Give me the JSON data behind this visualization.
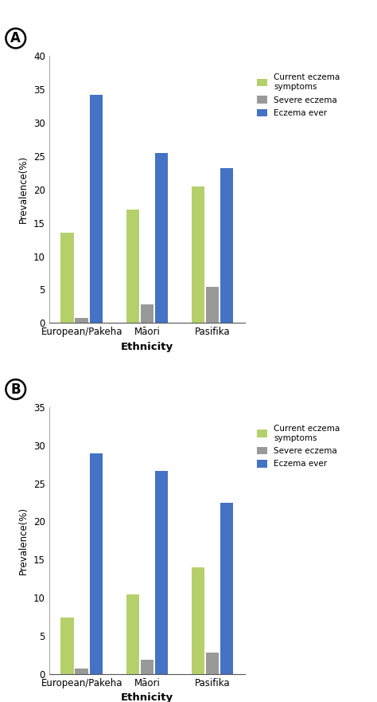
{
  "panel_A": {
    "label": "A",
    "categories": [
      "European/Pakeha",
      "Māori",
      "Pasifika"
    ],
    "current_eczema": [
      13.5,
      17.0,
      20.5
    ],
    "severe_eczema": [
      0.7,
      2.8,
      5.4
    ],
    "eczema_ever": [
      34.2,
      25.5,
      23.2
    ],
    "ylim": [
      0,
      40
    ],
    "yticks": [
      0,
      5,
      10,
      15,
      20,
      25,
      30,
      35,
      40
    ]
  },
  "panel_B": {
    "label": "B",
    "categories": [
      "European/Pakeha",
      "Māori",
      "Pasifika"
    ],
    "current_eczema": [
      7.4,
      10.4,
      14.0
    ],
    "severe_eczema": [
      0.7,
      1.9,
      2.8
    ],
    "eczema_ever": [
      28.9,
      26.6,
      22.5
    ],
    "ylim": [
      0,
      35
    ],
    "yticks": [
      0,
      5,
      10,
      15,
      20,
      25,
      30,
      35
    ]
  },
  "colors": {
    "current_eczema": "#b5d06b",
    "severe_eczema": "#999999",
    "eczema_ever": "#4472c4"
  },
  "legend_labels": [
    "Current eczema\nsymptoms",
    "Severe eczema",
    "Eczema ever"
  ],
  "ylabel": "Prevalence(%)",
  "xlabel": "Ethnicity",
  "bar_width": 0.2,
  "bar_gap": 0.02
}
